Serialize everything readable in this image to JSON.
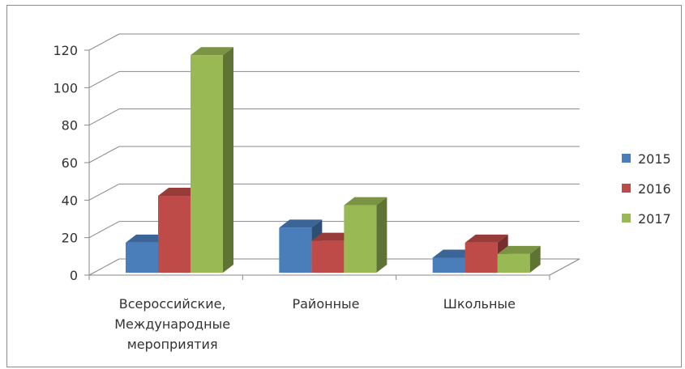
{
  "chart_data": {
    "type": "bar",
    "title": "",
    "xlabel": "",
    "ylabel": "",
    "categories": [
      [
        "Всероссийские,",
        "Международные",
        "мероприятия"
      ],
      [
        "Районные"
      ],
      [
        "Школьные"
      ]
    ],
    "series": [
      {
        "name": "2015",
        "values": [
          16,
          24,
          8
        ],
        "color": "#4a7ebb"
      },
      {
        "name": "2016",
        "values": [
          41,
          17,
          16
        ],
        "color": "#be4b48"
      },
      {
        "name": "2017",
        "values": [
          116,
          36,
          10
        ],
        "color": "#98b954"
      }
    ],
    "ylim": [
      0,
      120
    ],
    "yticks": [
      0,
      20,
      40,
      60,
      80,
      100,
      120
    ],
    "grid": true,
    "legend": "right",
    "style": "3d-clustered-column"
  }
}
